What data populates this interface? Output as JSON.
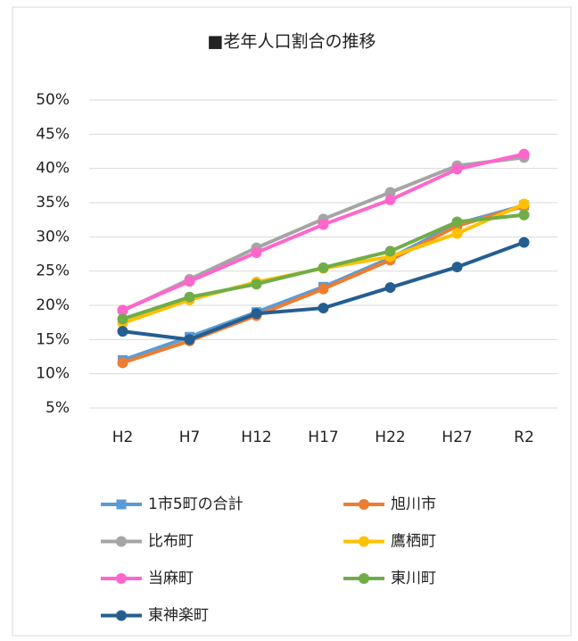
{
  "chart_data": {
    "type": "line",
    "title": "■老年人口割合の推移",
    "categories": [
      "H2",
      "H7",
      "H12",
      "H17",
      "H22",
      "H27",
      "R2"
    ],
    "ylim": [
      5,
      50
    ],
    "yticks": [
      {
        "value": 5,
        "label": "5%"
      },
      {
        "value": 10,
        "label": "10%"
      },
      {
        "value": 15,
        "label": "15%"
      },
      {
        "value": 20,
        "label": "20%"
      },
      {
        "value": 25,
        "label": "25%"
      },
      {
        "value": 30,
        "label": "30%"
      },
      {
        "value": 35,
        "label": "35%"
      },
      {
        "value": 40,
        "label": "40%"
      },
      {
        "value": 45,
        "label": "45%"
      },
      {
        "value": 50,
        "label": "50%"
      }
    ],
    "grid": true,
    "legend": "bottom",
    "series": [
      {
        "name": "1市5町の合計",
        "color": "#5b9bd5",
        "marker": "square",
        "values": [
          12.0,
          15.4,
          19.0,
          22.7,
          26.9,
          31.9,
          34.6
        ]
      },
      {
        "name": "旭川市",
        "color": "#ed7d31",
        "marker": "circle",
        "values": [
          11.6,
          14.8,
          18.5,
          22.4,
          26.6,
          31.6,
          34.5
        ]
      },
      {
        "name": "比布町",
        "color": "#a5a5a5",
        "marker": "circle",
        "values": [
          19.2,
          23.8,
          28.4,
          32.6,
          36.5,
          40.4,
          41.6
        ]
      },
      {
        "name": "鷹栖町",
        "color": "#ffc000",
        "marker": "circle",
        "values": [
          17.4,
          20.8,
          23.4,
          25.4,
          27.1,
          30.5,
          34.8
        ]
      },
      {
        "name": "当麻町",
        "color": "#ff66cc",
        "marker": "circle",
        "values": [
          19.3,
          23.5,
          27.7,
          31.8,
          35.4,
          39.9,
          42.1
        ]
      },
      {
        "name": "東川町",
        "color": "#70ad47",
        "marker": "circle",
        "values": [
          18.0,
          21.2,
          23.1,
          25.5,
          27.9,
          32.2,
          33.2
        ]
      },
      {
        "name": "東神楽町",
        "color": "#255e91",
        "marker": "circle",
        "values": [
          16.2,
          15.0,
          18.8,
          19.6,
          22.6,
          25.6,
          29.2
        ]
      }
    ]
  }
}
